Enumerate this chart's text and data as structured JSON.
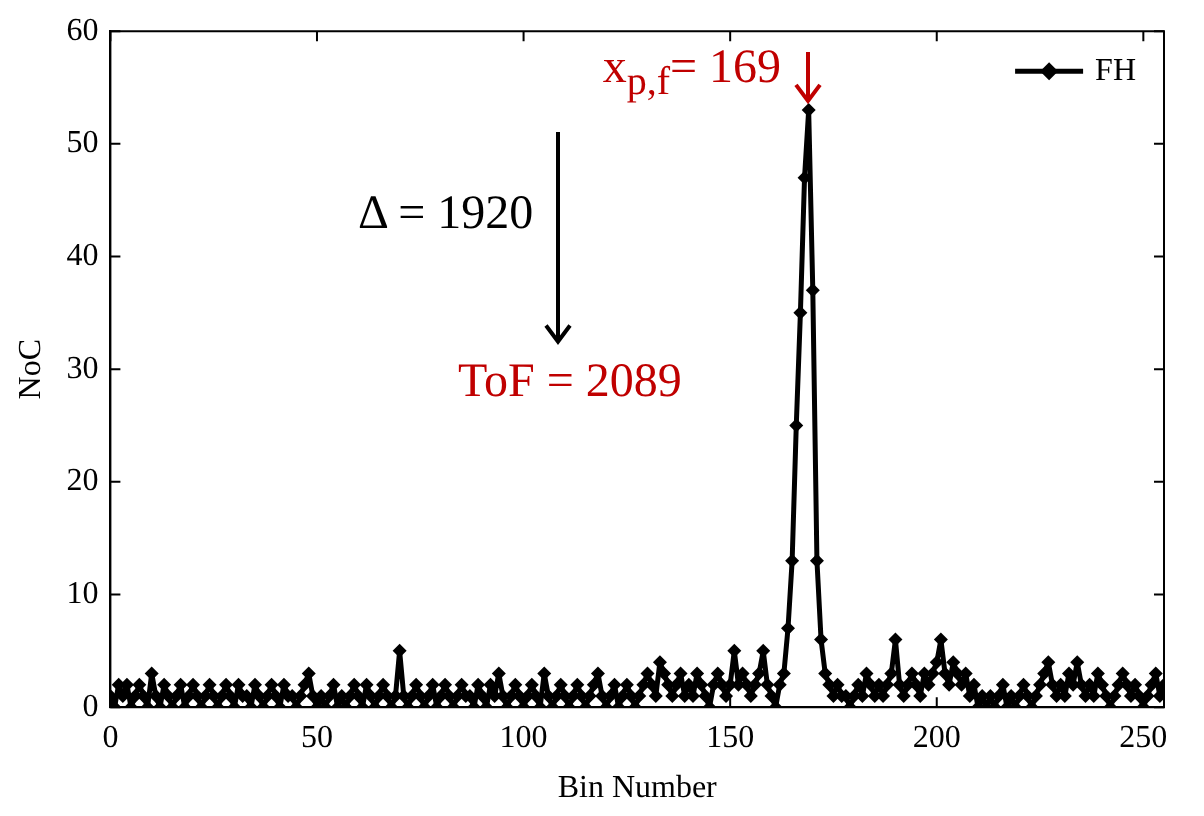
{
  "chart_data": {
    "type": "line",
    "xlabel": "Bin Number",
    "ylabel": "NoC",
    "x": [
      0,
      1,
      2,
      3,
      4,
      5,
      6,
      7,
      8,
      9,
      10,
      11,
      12,
      13,
      14,
      15,
      16,
      17,
      18,
      19,
      20,
      21,
      22,
      23,
      24,
      25,
      26,
      27,
      28,
      29,
      30,
      31,
      32,
      33,
      34,
      35,
      36,
      37,
      38,
      39,
      40,
      41,
      42,
      43,
      44,
      45,
      46,
      47,
      48,
      49,
      50,
      51,
      52,
      53,
      54,
      55,
      56,
      57,
      58,
      59,
      60,
      61,
      62,
      63,
      64,
      65,
      66,
      67,
      68,
      69,
      70,
      71,
      72,
      73,
      74,
      75,
      76,
      77,
      78,
      79,
      80,
      81,
      82,
      83,
      84,
      85,
      86,
      87,
      88,
      89,
      90,
      91,
      92,
      93,
      94,
      95,
      96,
      97,
      98,
      99,
      100,
      101,
      102,
      103,
      104,
      105,
      106,
      107,
      108,
      109,
      110,
      111,
      112,
      113,
      114,
      115,
      116,
      117,
      118,
      119,
      120,
      121,
      122,
      123,
      124,
      125,
      126,
      127,
      128,
      129,
      130,
      131,
      132,
      133,
      134,
      135,
      136,
      137,
      138,
      139,
      140,
      141,
      142,
      143,
      144,
      145,
      146,
      147,
      148,
      149,
      150,
      151,
      152,
      153,
      154,
      155,
      156,
      157,
      158,
      159,
      160,
      161,
      162,
      163,
      164,
      165,
      166,
      167,
      168,
      169,
      170,
      171,
      172,
      173,
      174,
      175,
      176,
      177,
      178,
      179,
      180,
      181,
      182,
      183,
      184,
      185,
      186,
      187,
      188,
      189,
      190,
      191,
      192,
      193,
      194,
      195,
      196,
      197,
      198,
      199,
      200,
      201,
      202,
      203,
      204,
      205,
      206,
      207,
      208,
      209,
      210,
      211,
      212,
      213,
      214,
      215,
      216,
      217,
      218,
      219,
      220,
      221,
      222,
      223,
      224,
      225,
      226,
      227,
      228,
      229,
      230,
      231,
      232,
      233,
      234,
      235,
      236,
      237,
      238,
      239,
      240,
      241,
      242,
      243,
      244,
      245,
      246,
      247,
      248,
      249,
      250,
      251,
      252,
      253,
      254,
      255
    ],
    "series": [
      {
        "name": "FH",
        "color": "#000000",
        "values": [
          1,
          0,
          2,
          1,
          2,
          0,
          1,
          2,
          1,
          0,
          3,
          1,
          0,
          2,
          1,
          0,
          1,
          2,
          0,
          1,
          2,
          1,
          0,
          1,
          2,
          1,
          0,
          1,
          2,
          1,
          0,
          2,
          1,
          1,
          0,
          2,
          1,
          0,
          1,
          2,
          1,
          0,
          2,
          1,
          1,
          0,
          1,
          2,
          3,
          1,
          0,
          1,
          0,
          1,
          2,
          0,
          1,
          0,
          1,
          2,
          1,
          0,
          2,
          1,
          0,
          1,
          2,
          1,
          0,
          1,
          5,
          1,
          0,
          1,
          2,
          1,
          0,
          1,
          2,
          0,
          1,
          2,
          1,
          0,
          1,
          2,
          1,
          1,
          0,
          2,
          1,
          0,
          2,
          1,
          3,
          1,
          0,
          1,
          2,
          1,
          0,
          1,
          2,
          1,
          0,
          3,
          1,
          0,
          1,
          2,
          1,
          0,
          1,
          2,
          1,
          0,
          1,
          2,
          3,
          1,
          0,
          1,
          2,
          0,
          1,
          2,
          1,
          0,
          1,
          2,
          3,
          2,
          1,
          4,
          3,
          2,
          1,
          2,
          3,
          1,
          2,
          1,
          3,
          2,
          1,
          0,
          2,
          3,
          2,
          1,
          2,
          5,
          2,
          3,
          2,
          1,
          2,
          3,
          5,
          2,
          1,
          0,
          2,
          3,
          7,
          13,
          25,
          35,
          47,
          53,
          37,
          13,
          6,
          3,
          2,
          1,
          2,
          1,
          1,
          0,
          1,
          2,
          1,
          3,
          2,
          1,
          2,
          1,
          2,
          3,
          6,
          2,
          1,
          2,
          3,
          2,
          1,
          3,
          2,
          3,
          4,
          6,
          3,
          2,
          4,
          3,
          2,
          3,
          1,
          2,
          0,
          1,
          0,
          1,
          0,
          1,
          2,
          0,
          1,
          0,
          1,
          2,
          1,
          0,
          1,
          2,
          3,
          4,
          2,
          1,
          2,
          1,
          3,
          2,
          4,
          2,
          1,
          2,
          1,
          3,
          2,
          1,
          0,
          1,
          2,
          3,
          2,
          1,
          2,
          1,
          0,
          1,
          2,
          3,
          1,
          2
        ]
      }
    ],
    "xlim": [
      0,
      255
    ],
    "xticks": [
      0,
      50,
      100,
      150,
      200,
      250
    ],
    "ylim": [
      0,
      60
    ],
    "yticks": [
      0,
      10,
      20,
      30,
      40,
      50,
      60
    ],
    "marker": "diamond",
    "line_style": "solid",
    "legend": "top right",
    "grid": false,
    "annotations": [
      "Δ = 1920",
      {
        "text": "x$_{p,f}$= 169",
        "x": 169,
        "y": 53
      },
      "ToF = 2089"
    ]
  }
}
